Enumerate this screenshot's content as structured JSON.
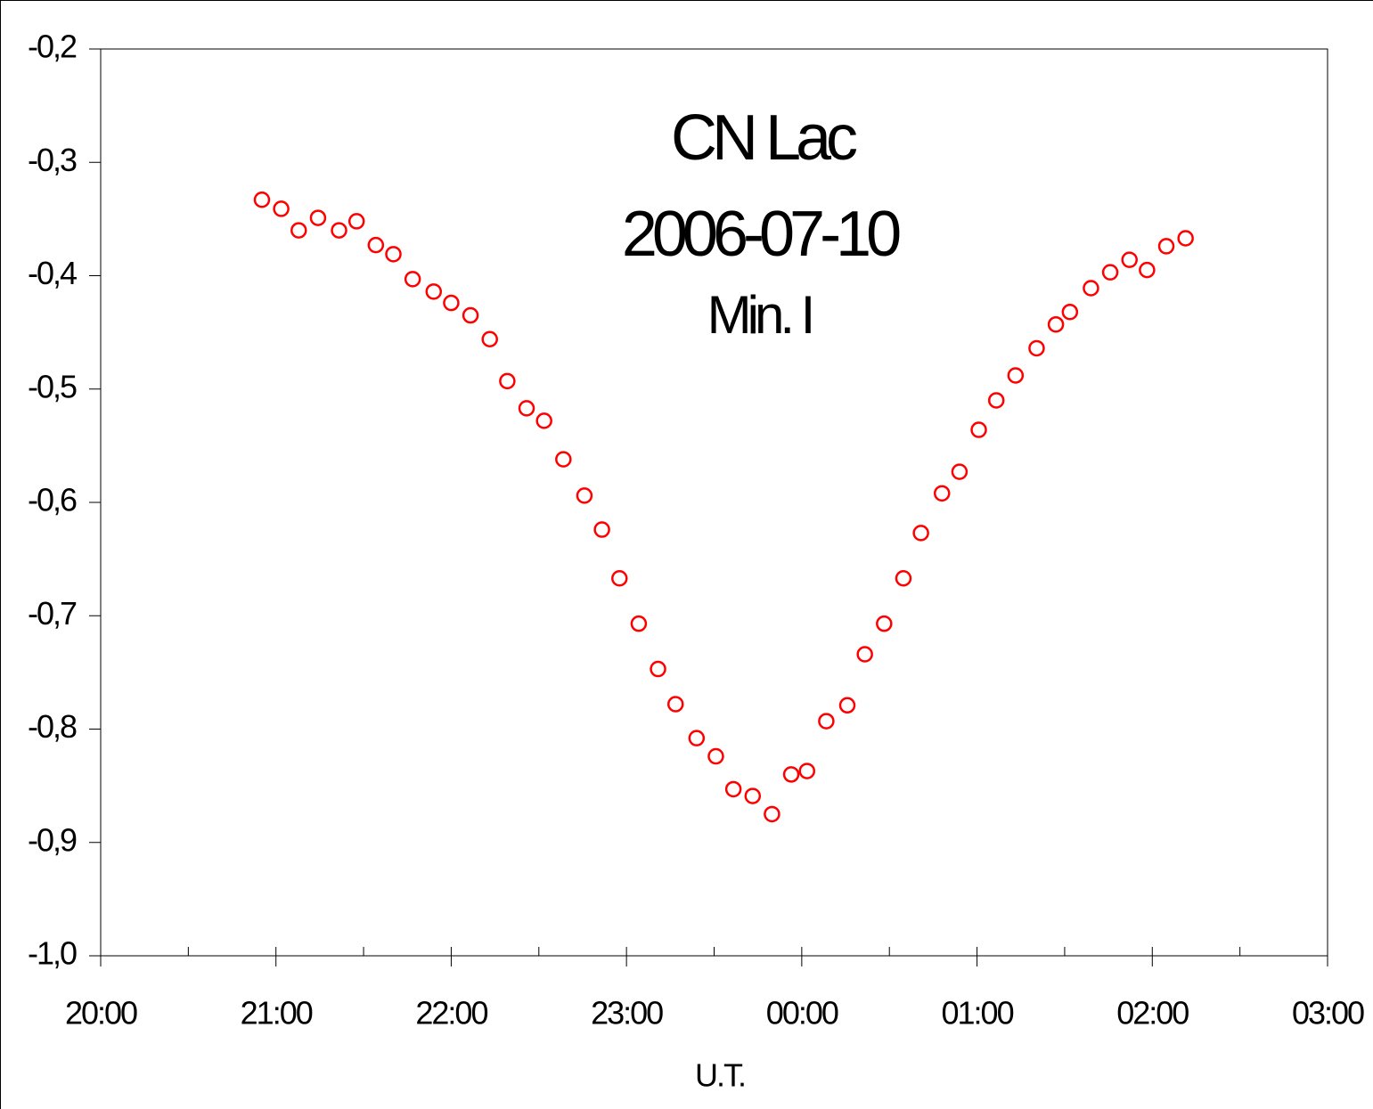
{
  "chart_data": {
    "type": "scatter",
    "title": "CN Lac",
    "subtitle": "2006-07-10",
    "annotation": "Min. I",
    "x_label": "U.T.",
    "color": "#ff0000",
    "marker": "open-circle",
    "x": [
      20.92,
      21.03,
      21.13,
      21.24,
      21.36,
      21.46,
      21.57,
      21.67,
      21.78,
      21.9,
      22.0,
      22.11,
      22.22,
      22.32,
      22.43,
      22.53,
      22.64,
      22.76,
      22.86,
      22.96,
      23.07,
      23.18,
      23.28,
      23.4,
      23.51,
      23.61,
      23.72,
      23.83,
      23.94,
      24.03,
      24.14,
      24.26,
      24.36,
      24.47,
      24.58,
      24.68,
      24.8,
      24.9,
      25.01,
      25.11,
      25.22,
      25.34,
      25.45,
      25.53,
      25.65,
      25.76,
      25.87,
      25.97,
      26.08,
      26.19
    ],
    "values": [
      -0.333,
      -0.341,
      -0.36,
      -0.349,
      -0.36,
      -0.352,
      -0.373,
      -0.381,
      -0.403,
      -0.414,
      -0.424,
      -0.435,
      -0.456,
      -0.493,
      -0.517,
      -0.528,
      -0.562,
      -0.594,
      -0.624,
      -0.667,
      -0.707,
      -0.747,
      -0.778,
      -0.808,
      -0.824,
      -0.853,
      -0.859,
      -0.875,
      -0.84,
      -0.837,
      -0.793,
      -0.779,
      -0.734,
      -0.707,
      -0.667,
      -0.627,
      -0.592,
      -0.573,
      -0.536,
      -0.51,
      -0.488,
      -0.464,
      -0.443,
      -0.432,
      -0.411,
      -0.397,
      -0.386,
      -0.395,
      -0.374,
      -0.367
    ],
    "xlim": [
      20,
      27
    ],
    "xticks": [
      {
        "value": 20,
        "label": "20:00"
      },
      {
        "value": 21,
        "label": "21:00"
      },
      {
        "value": 22,
        "label": "22:00"
      },
      {
        "value": 23,
        "label": "23:00"
      },
      {
        "value": 24,
        "label": "00:00"
      },
      {
        "value": 25,
        "label": "01:00"
      },
      {
        "value": 26,
        "label": "02:00"
      },
      {
        "value": 27,
        "label": "03:00"
      }
    ],
    "xminorticks": [
      20.5,
      21.5,
      22.5,
      23.5,
      24.5,
      25.5,
      26.5
    ],
    "ylim": [
      -1.0,
      -0.2
    ],
    "yticks": [
      {
        "value": -1.0,
        "label": "-1,0"
      },
      {
        "value": -0.9,
        "label": "-0,9"
      },
      {
        "value": -0.8,
        "label": "-0,8"
      },
      {
        "value": -0.7,
        "label": "-0,7"
      },
      {
        "value": -0.6,
        "label": "-0,6"
      },
      {
        "value": -0.5,
        "label": "-0,5"
      },
      {
        "value": -0.4,
        "label": "-0,4"
      },
      {
        "value": -0.3,
        "label": "-0,3"
      },
      {
        "value": -0.2,
        "label": "-0,2"
      }
    ],
    "grid": false
  }
}
